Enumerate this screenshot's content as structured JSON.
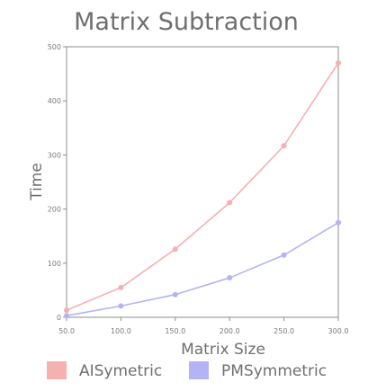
{
  "chart_data": {
    "type": "line",
    "title": "Matrix Subtraction",
    "xlabel": "Matrix Size",
    "ylabel": "Time",
    "xlim": [
      50,
      300
    ],
    "ylim": [
      0,
      500
    ],
    "x_ticks": [
      "50.0",
      "100.0",
      "150.0",
      "200.0",
      "250.0",
      "300.0"
    ],
    "y_ticks": [
      "0",
      "100",
      "200",
      "300",
      "400",
      "500"
    ],
    "x": [
      50,
      100,
      150,
      200,
      250,
      300
    ],
    "series": [
      {
        "name": "AISymetric",
        "color": "#f5b0b0",
        "values": [
          13,
          55,
          126,
          212,
          317,
          470
        ]
      },
      {
        "name": "PMSymmetric",
        "color": "#b3b3f5",
        "values": [
          3,
          21,
          42,
          73,
          115,
          175
        ]
      }
    ],
    "grid": false,
    "legend_position": "bottom"
  }
}
